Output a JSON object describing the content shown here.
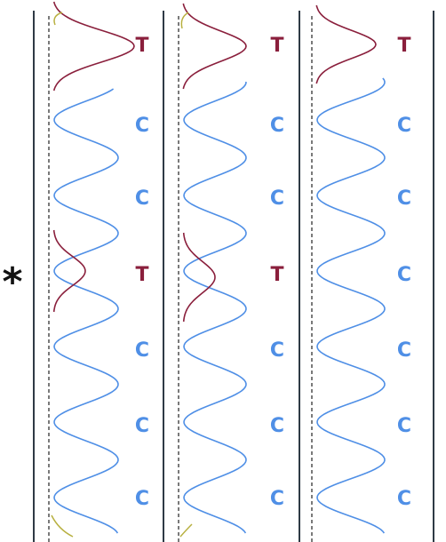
{
  "marker": "*",
  "colors": {
    "blue": "#4f8fe6",
    "maroon": "#8a1f3c",
    "olive": "#b8b040",
    "axis": "#2f3a45",
    "dash": "#333333"
  },
  "tracks": [
    {
      "labels": [
        {
          "text": "T",
          "color": "maroon"
        },
        {
          "text": "C",
          "color": "blue"
        },
        {
          "text": "C",
          "color": "blue"
        },
        {
          "text": "T",
          "color": "maroon"
        },
        {
          "text": "C",
          "color": "blue"
        },
        {
          "text": "C",
          "color": "blue"
        },
        {
          "text": "C",
          "color": "blue"
        }
      ]
    },
    {
      "labels": [
        {
          "text": "T",
          "color": "maroon"
        },
        {
          "text": "C",
          "color": "blue"
        },
        {
          "text": "C",
          "color": "blue"
        },
        {
          "text": "T",
          "color": "maroon"
        },
        {
          "text": "C",
          "color": "blue"
        },
        {
          "text": "C",
          "color": "blue"
        },
        {
          "text": "C",
          "color": "blue"
        }
      ]
    },
    {
      "labels": [
        {
          "text": "T",
          "color": "maroon"
        },
        {
          "text": "C",
          "color": "blue"
        },
        {
          "text": "C",
          "color": "blue"
        },
        {
          "text": "C",
          "color": "blue"
        },
        {
          "text": "C",
          "color": "blue"
        },
        {
          "text": "C",
          "color": "blue"
        },
        {
          "text": "C",
          "color": "blue"
        }
      ]
    }
  ]
}
